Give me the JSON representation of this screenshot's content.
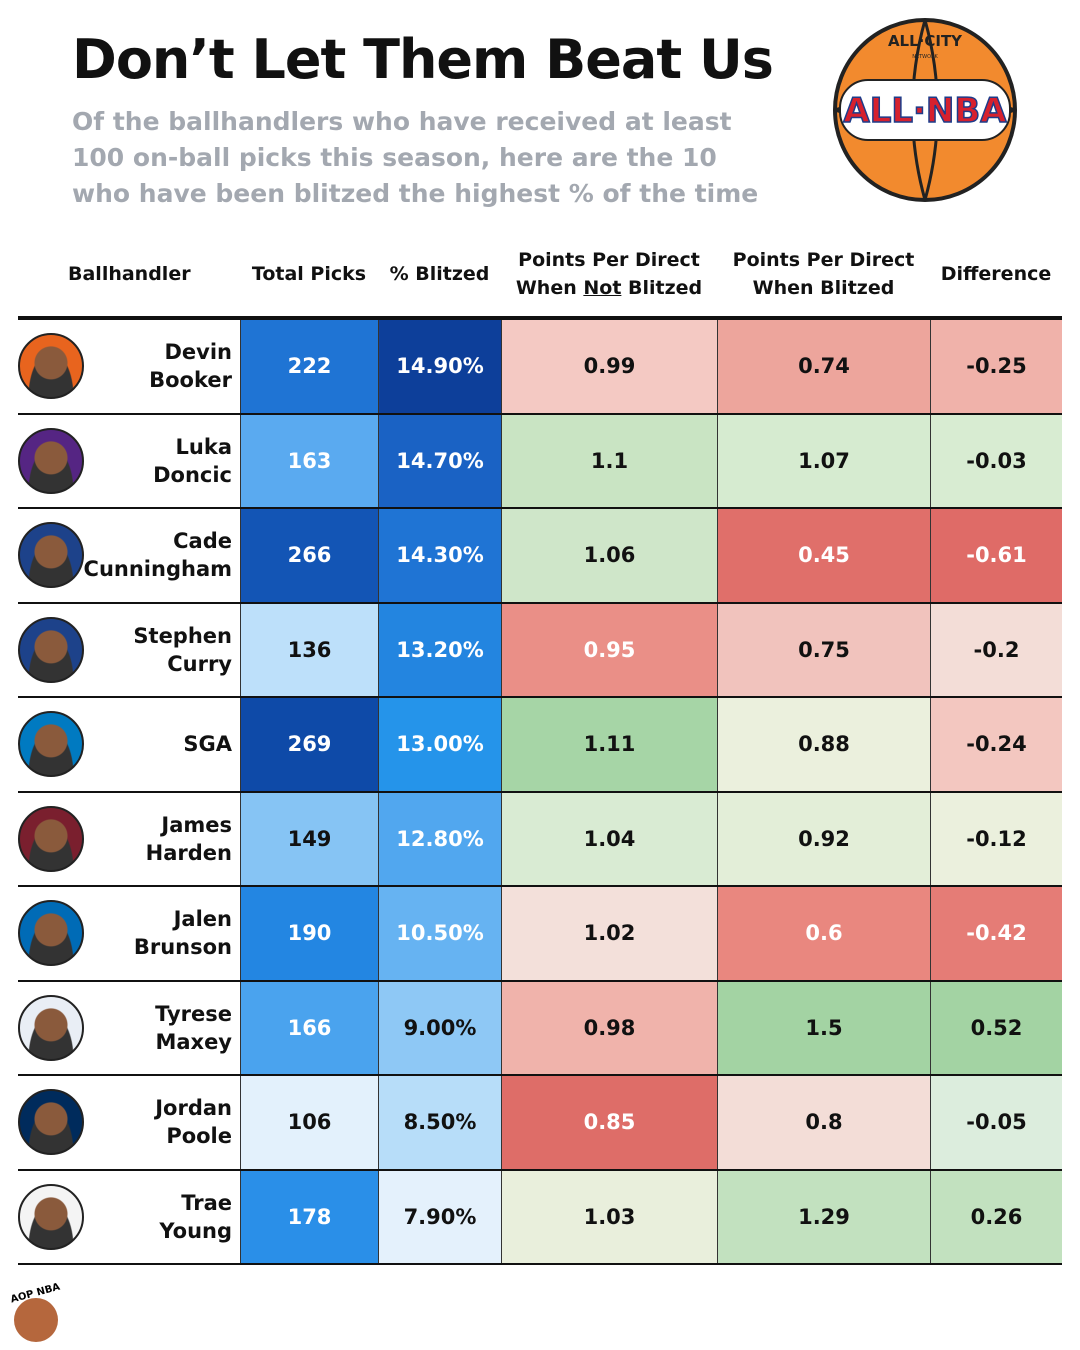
{
  "header": {
    "title": "Don’t Let Them Beat Us",
    "subtitle": "Of the ballhandlers who have received at least 100 on-ball picks this season, here are the 10 who have been blitzed the highest % of the time"
  },
  "logo": {
    "top": "ALL·CITY",
    "small": "NETWORK",
    "main": "ALL·NBA"
  },
  "footer_logo": "AOP NBA",
  "table": {
    "columns": [
      {
        "lines": [
          "Ballhandler"
        ]
      },
      {
        "lines": [
          "Total Picks"
        ]
      },
      {
        "lines": [
          "% Blitzed"
        ]
      },
      {
        "lines": [
          "Points Per Direct"
        ],
        "pre": "When ",
        "em": "Not",
        "post": " Blitzed"
      },
      {
        "lines": [
          "Points Per Direct",
          "When Blitzed"
        ]
      },
      {
        "lines": [
          "Difference"
        ]
      }
    ],
    "rows": [
      {
        "name": [
          "Devin",
          "Booker"
        ],
        "cells": [
          "222",
          "14.90%",
          "0.99",
          "0.74",
          "-0.25"
        ],
        "colors": [
          "#1f74d4",
          "#0d3f9a",
          "#f4c9c3",
          "#eda59c",
          "#f0b2aa"
        ]
      },
      {
        "name": [
          "Luka",
          "Doncic"
        ],
        "cells": [
          "163",
          "14.70%",
          "1.1",
          "1.07",
          "-0.03"
        ],
        "colors": [
          "#5aaaf0",
          "#1a62c4",
          "#c9e4c3",
          "#d6ebd0",
          "#d8ecd2"
        ]
      },
      {
        "name": [
          "Cade",
          "Cunningham"
        ],
        "cells": [
          "266",
          "14.30%",
          "1.06",
          "0.45",
          "-0.61"
        ],
        "colors": [
          "#1355b5",
          "#1f74d4",
          "#cfe6c9",
          "#e06f6a",
          "#df6b67"
        ]
      },
      {
        "name": [
          "Stephen",
          "Curry"
        ],
        "cells": [
          "136",
          "13.20%",
          "0.95",
          "0.75",
          "-0.2"
        ],
        "colors": [
          "#bde0fa",
          "#2385e0",
          "#ea8f87",
          "#f1c3bd",
          "#f3ddd7"
        ]
      },
      {
        "name": [
          "SGA"
        ],
        "cells": [
          "269",
          "13.00%",
          "1.11",
          "0.88",
          "-0.24"
        ],
        "colors": [
          "#0e4aa8",
          "#2594ea",
          "#a6d5a6",
          "#ebf0dd",
          "#f3c7c0"
        ]
      },
      {
        "name": [
          "James",
          "Harden"
        ],
        "cells": [
          "149",
          "12.80%",
          "1.04",
          "0.92",
          "-0.12"
        ],
        "colors": [
          "#86c4f4",
          "#51a7ef",
          "#d9ebd3",
          "#e3eed8",
          "#ebf0dd"
        ]
      },
      {
        "name": [
          "Jalen",
          "Brunson"
        ],
        "cells": [
          "190",
          "10.50%",
          "1.02",
          "0.6",
          "-0.42"
        ],
        "colors": [
          "#2386e2",
          "#66b3f2",
          "#f3e0da",
          "#e9877f",
          "#e57c76"
        ]
      },
      {
        "name": [
          "Tyrese",
          "Maxey"
        ],
        "cells": [
          "166",
          "9.00%",
          "0.98",
          "1.5",
          "0.52"
        ],
        "colors": [
          "#4aa3ee",
          "#8ec8f5",
          "#f0b3ab",
          "#a3d3a3",
          "#a3d3a3"
        ]
      },
      {
        "name": [
          "Jordan",
          "Poole"
        ],
        "cells": [
          "106",
          "8.50%",
          "0.85",
          "0.8",
          "-0.05"
        ],
        "colors": [
          "#e3f1fc",
          "#b7ddf9",
          "#de6d68",
          "#f3ddd7",
          "#dceddd"
        ]
      },
      {
        "name": [
          "Trae",
          "Young"
        ],
        "cells": [
          "178",
          "7.90%",
          "1.03",
          "1.29",
          "0.26"
        ],
        "colors": [
          "#2a8fe8",
          "#e4f1fc",
          "#e9efdc",
          "#c2e1bf",
          "#c2e1bf"
        ]
      }
    ]
  }
}
